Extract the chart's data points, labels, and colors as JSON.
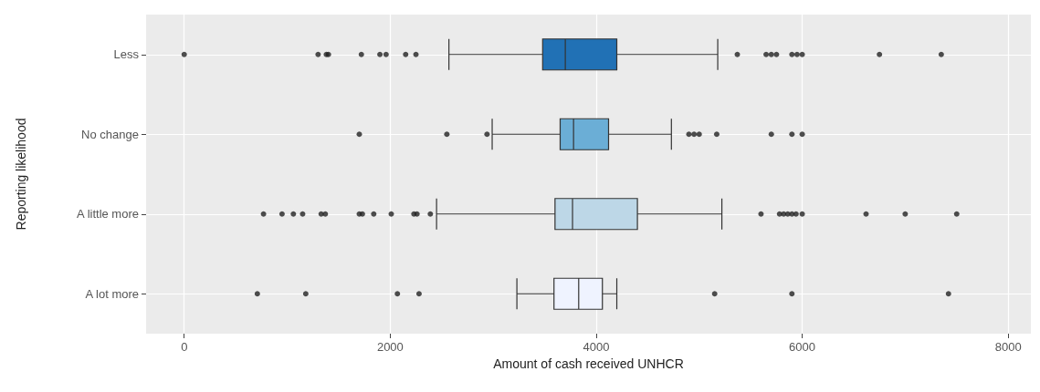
{
  "chart_data": {
    "type": "box",
    "orientation": "horizontal",
    "xlabel": "Amount of cash received UNHCR",
    "ylabel": "Reporting likelihood",
    "categories": [
      "Less",
      "No change",
      "A little more",
      "A lot more"
    ],
    "colors": [
      "#2171b5",
      "#6baed6",
      "#bdd7e7",
      "#eff3ff"
    ],
    "boxes": [
      {
        "low": 2570,
        "q1": 3480,
        "median": 3700,
        "q3": 4200,
        "high": 5180,
        "outliers": [
          0,
          1300,
          1380,
          1400,
          1720,
          1900,
          1960,
          2150,
          2250,
          5370,
          5650,
          5700,
          5750,
          5900,
          5950,
          6000,
          6750,
          7350
        ]
      },
      {
        "low": 2990,
        "q1": 3650,
        "median": 3780,
        "q3": 4120,
        "high": 4730,
        "outliers": [
          1700,
          2550,
          2940,
          4900,
          4950,
          5000,
          5170,
          5700,
          5900,
          6000
        ]
      },
      {
        "low": 2450,
        "q1": 3600,
        "median": 3770,
        "q3": 4400,
        "high": 5220,
        "outliers": [
          770,
          950,
          1060,
          1150,
          1330,
          1370,
          1700,
          1730,
          1840,
          2010,
          2230,
          2260,
          2390,
          5600,
          5780,
          5820,
          5860,
          5900,
          5940,
          6000,
          6620,
          7000,
          7500
        ]
      },
      {
        "low": 3230,
        "q1": 3590,
        "median": 3830,
        "q3": 4060,
        "high": 4200,
        "outliers": [
          710,
          1180,
          2070,
          2280,
          5150,
          5900,
          7420
        ]
      }
    ],
    "xlim": [
      -370,
      8220
    ],
    "xticks": [
      0,
      2000,
      4000,
      6000,
      8000
    ],
    "grid": true
  }
}
